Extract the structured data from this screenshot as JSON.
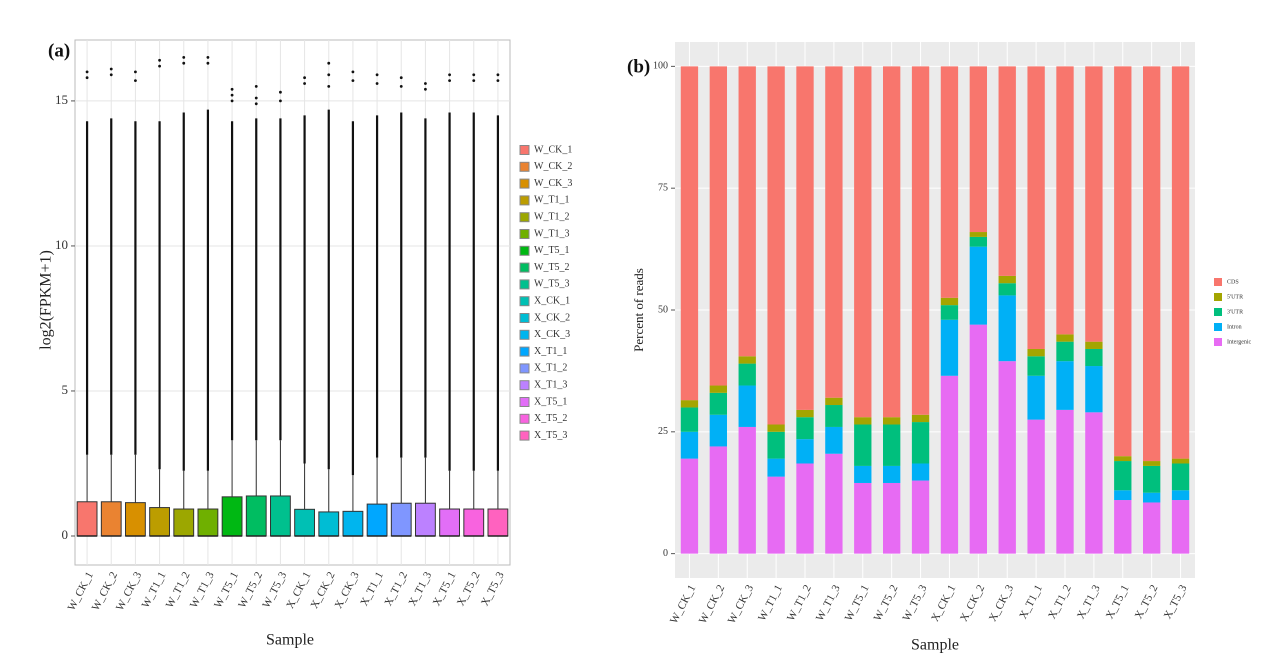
{
  "chart_data": [
    {
      "type": "box",
      "label": "(a)",
      "y_label": "log2(FPKM+1)",
      "x_label": "Sample",
      "ylim": [
        -1,
        17.1
      ],
      "yticks": [
        0,
        5,
        10,
        15
      ],
      "grid": true,
      "panel_color": "#ffffff",
      "grid_color": "#e5e5e5",
      "legend": "right",
      "categories": [
        "W_CK_1",
        "W_CK_2",
        "W_CK_3",
        "W_T1_1",
        "W_T1_2",
        "W_T1_3",
        "W_T5_1",
        "W_T5_2",
        "W_T5_3",
        "X_CK_1",
        "X_CK_2",
        "X_CK_3",
        "X_T1_1",
        "X_T1_2",
        "X_T1_3",
        "X_T5_1",
        "X_T5_2",
        "X_T5_3"
      ],
      "boxes": [
        {
          "name": "W_CK_1",
          "color": "#F8766D",
          "low": 0,
          "q1": 0,
          "median": 0,
          "q3": 1.18,
          "high": 2.8,
          "outlier_range": [
            2.8,
            14.3
          ],
          "outliers": [
            15.8,
            16
          ]
        },
        {
          "name": "W_CK_2",
          "color": "#EA8331",
          "low": 0,
          "q1": 0,
          "median": 0,
          "q3": 1.18,
          "high": 2.8,
          "outlier_range": [
            2.8,
            14.4
          ],
          "outliers": [
            15.9,
            16.1
          ]
        },
        {
          "name": "W_CK_3",
          "color": "#D89000",
          "low": 0,
          "q1": 0,
          "median": 0,
          "q3": 1.15,
          "high": 2.8,
          "outlier_range": [
            2.8,
            14.3
          ],
          "outliers": [
            15.7,
            16
          ]
        },
        {
          "name": "W_T1_1",
          "color": "#BC9D00",
          "low": 0,
          "q1": 0,
          "median": 0,
          "q3": 0.98,
          "high": 2.3,
          "outlier_range": [
            2.3,
            14.3
          ],
          "outliers": [
            16.2,
            16.4
          ]
        },
        {
          "name": "W_T1_2",
          "color": "#9CA700",
          "low": 0,
          "q1": 0,
          "median": 0,
          "q3": 0.93,
          "high": 2.25,
          "outlier_range": [
            2.25,
            14.6
          ],
          "outliers": [
            16.3,
            16.5
          ]
        },
        {
          "name": "W_T1_3",
          "color": "#6FB000",
          "low": 0,
          "q1": 0,
          "median": 0,
          "q3": 0.93,
          "high": 2.25,
          "outlier_range": [
            2.25,
            14.7
          ],
          "outliers": [
            16.3,
            16.5
          ]
        },
        {
          "name": "W_T5_1",
          "color": "#00B813",
          "low": 0,
          "q1": 0,
          "median": 0,
          "q3": 1.35,
          "high": 3.3,
          "outlier_range": [
            3.3,
            14.3
          ],
          "outliers": [
            15,
            15.2,
            15.4
          ]
        },
        {
          "name": "W_T5_2",
          "color": "#00BD61",
          "low": 0,
          "q1": 0,
          "median": 0,
          "q3": 1.38,
          "high": 3.3,
          "outlier_range": [
            3.3,
            14.4
          ],
          "outliers": [
            14.9,
            15.1,
            15.5
          ]
        },
        {
          "name": "W_T5_3",
          "color": "#00C08E",
          "low": 0,
          "q1": 0,
          "median": 0,
          "q3": 1.38,
          "high": 3.3,
          "outlier_range": [
            3.3,
            14.4
          ],
          "outliers": [
            15,
            15.3
          ]
        },
        {
          "name": "X_CK_1",
          "color": "#00C0B4",
          "low": 0,
          "q1": 0,
          "median": 0,
          "q3": 0.92,
          "high": 2.5,
          "outlier_range": [
            2.5,
            14.5
          ],
          "outliers": [
            15.6,
            15.8
          ]
        },
        {
          "name": "X_CK_2",
          "color": "#00BDD4",
          "low": 0,
          "q1": 0,
          "median": 0,
          "q3": 0.83,
          "high": 2.3,
          "outlier_range": [
            2.3,
            14.7
          ],
          "outliers": [
            15.5,
            15.9,
            16.3
          ]
        },
        {
          "name": "X_CK_3",
          "color": "#00B5EE",
          "low": 0,
          "q1": 0,
          "median": 0,
          "q3": 0.85,
          "high": 2.1,
          "outlier_range": [
            2.1,
            14.3
          ],
          "outliers": [
            15.7,
            16
          ]
        },
        {
          "name": "X_T1_1",
          "color": "#00A7FF",
          "low": 0,
          "q1": 0,
          "median": 0,
          "q3": 1.1,
          "high": 2.7,
          "outlier_range": [
            2.7,
            14.5
          ],
          "outliers": [
            15.6,
            15.9
          ]
        },
        {
          "name": "X_T1_2",
          "color": "#7F96FF",
          "low": 0,
          "q1": 0,
          "median": 0,
          "q3": 1.13,
          "high": 2.7,
          "outlier_range": [
            2.7,
            14.6
          ],
          "outliers": [
            15.5,
            15.8
          ]
        },
        {
          "name": "X_T1_3",
          "color": "#BC81FF",
          "low": 0,
          "q1": 0,
          "median": 0,
          "q3": 1.13,
          "high": 2.7,
          "outlier_range": [
            2.7,
            14.4
          ],
          "outliers": [
            15.4,
            15.6
          ]
        },
        {
          "name": "X_T5_1",
          "color": "#E26EF7",
          "low": 0,
          "q1": 0,
          "median": 0,
          "q3": 0.93,
          "high": 2.25,
          "outlier_range": [
            2.25,
            14.6
          ],
          "outliers": [
            15.7,
            15.9
          ]
        },
        {
          "name": "X_T5_2",
          "color": "#F863DF",
          "low": 0,
          "q1": 0,
          "median": 0,
          "q3": 0.93,
          "high": 2.25,
          "outlier_range": [
            2.25,
            14.6
          ],
          "outliers": [
            15.7,
            15.9
          ]
        },
        {
          "name": "X_T5_3",
          "color": "#FF62BF",
          "low": 0,
          "q1": 0,
          "median": 0,
          "q3": 0.93,
          "high": 2.25,
          "outlier_range": [
            2.25,
            14.5
          ],
          "outliers": [
            15.7,
            15.9
          ]
        }
      ]
    },
    {
      "type": "bar",
      "stacked": true,
      "label": "(b)",
      "y_label": "Percent of reads",
      "x_label": "Sample",
      "ylim": [
        -5,
        105
      ],
      "yticks": [
        0,
        25,
        50,
        75,
        100
      ],
      "grid": true,
      "panel_color": "#ebebeb",
      "grid_color": "#ffffff",
      "legend": "right",
      "categories": [
        "W_CK_1",
        "W_CK_2",
        "W_CK_3",
        "W_T1_1",
        "W_T1_2",
        "W_T1_3",
        "W_T5_1",
        "W_T5_2",
        "W_T5_3",
        "X_CK_1",
        "X_CK_2",
        "X_CK_3",
        "X_T1_1",
        "X_T1_2",
        "X_T1_3",
        "X_T5_1",
        "X_T5_2",
        "X_T5_3"
      ],
      "series": [
        {
          "name": "Intergenic",
          "color": "#E76BF3",
          "values": [
            19.5,
            22,
            26,
            15.8,
            18.5,
            20.5,
            14.5,
            14.5,
            15,
            36.5,
            47,
            39.5,
            27.5,
            29.5,
            29,
            11,
            10.5,
            11
          ]
        },
        {
          "name": "Intron",
          "color": "#00B0F6",
          "values": [
            5.5,
            6.5,
            8.5,
            3.7,
            5,
            5.5,
            3.5,
            3.5,
            3.5,
            11.5,
            16,
            13.5,
            9,
            10,
            9.5,
            2,
            2,
            2
          ]
        },
        {
          "name": "3'UTR",
          "color": "#00BF7D",
          "values": [
            5,
            4.5,
            4.5,
            5.5,
            4.5,
            4.5,
            8.5,
            8.5,
            8.5,
            3,
            2,
            2.5,
            4,
            4,
            3.5,
            6,
            5.5,
            5.5
          ]
        },
        {
          "name": "5'UTR",
          "color": "#A3A500",
          "values": [
            1.5,
            1.5,
            1.5,
            1.5,
            1.5,
            1.5,
            1.5,
            1.5,
            1.5,
            1.5,
            1,
            1.5,
            1.5,
            1.5,
            1.5,
            1,
            1,
            1
          ]
        },
        {
          "name": "CDS",
          "color": "#F8766D",
          "values": [
            68.5,
            65.5,
            59.5,
            73.5,
            70.5,
            68,
            72,
            72,
            71.5,
            47.5,
            34,
            43,
            58,
            55,
            56.5,
            80,
            81,
            80.5
          ]
        }
      ]
    }
  ]
}
